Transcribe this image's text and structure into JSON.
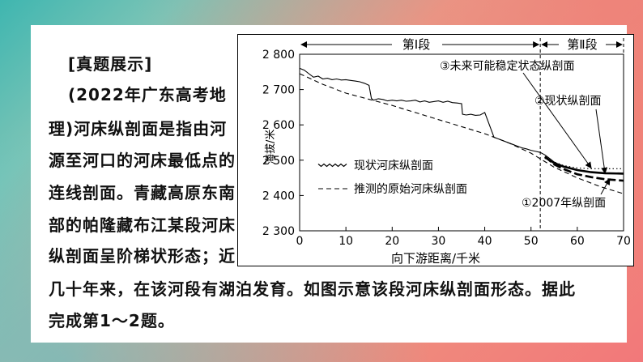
{
  "passage": {
    "lines": [
      "[真题展示]",
      "(2022年广东高考地",
      "理)河床纵剖面是指由河",
      "源至河口的河床最低点的",
      "连线剖面。青藏高原东南",
      "部的帕隆藏布江某段河床",
      "纵剖面呈阶梯状形态；近",
      "几十年来，在该河段有湖泊发育。如图示意该段河床纵剖面形态。据此",
      "完成第1～2题。"
    ]
  },
  "chart_data": {
    "type": "line",
    "title": "",
    "xlabel": "向下游距离/千米",
    "ylabel": "海拔/米",
    "xlim": [
      0,
      70
    ],
    "ylim": [
      2300,
      2800
    ],
    "x_ticks": [
      0,
      10,
      20,
      30,
      40,
      50,
      60,
      70
    ],
    "x_tick_labels": [
      "0",
      "10",
      "20",
      "30",
      "40",
      "50",
      "60",
      "70"
    ],
    "y_ticks": [
      2300,
      2400,
      2500,
      2600,
      2700,
      2800
    ],
    "y_tick_labels": [
      "2 300",
      "2 400",
      "2 500",
      "2 600",
      "2 700",
      "2 800"
    ],
    "grid": false,
    "sections": {
      "boundary_x": 52,
      "end_x": 70,
      "section1_label": "第Ⅰ段",
      "section2_label": "第Ⅱ段"
    },
    "legend": [
      {
        "name": "现状河床纵剖面",
        "style": "wavy-solid"
      },
      {
        "name": "推测的原始河床纵剖面",
        "style": "dashed"
      }
    ],
    "series": [
      {
        "name": "现状河床纵剖面",
        "style": "solid-thin",
        "x": [
          0,
          1,
          2,
          3,
          4,
          5,
          6,
          7,
          8,
          9,
          10,
          11,
          12,
          13,
          14,
          15,
          15.5,
          16,
          17,
          18,
          19,
          20,
          21,
          22,
          23,
          24,
          25,
          26,
          27,
          28,
          29,
          30,
          31,
          32,
          33,
          34,
          35,
          35.2,
          36,
          37,
          38,
          39,
          40,
          41,
          42,
          43,
          44,
          45,
          46,
          47,
          48,
          49,
          50,
          51,
          52,
          53,
          54,
          55,
          56,
          57
        ],
        "y": [
          2760,
          2755,
          2745,
          2735,
          2738,
          2730,
          2732,
          2728,
          2730,
          2727,
          2728,
          2726,
          2724,
          2722,
          2718,
          2712,
          2675,
          2670,
          2674,
          2672,
          2668,
          2670,
          2668,
          2670,
          2667,
          2668,
          2670,
          2665,
          2668,
          2664,
          2666,
          2668,
          2664,
          2667,
          2663,
          2662,
          2660,
          2630,
          2628,
          2630,
          2627,
          2628,
          2635,
          2600,
          2565,
          2560,
          2555,
          2550,
          2545,
          2540,
          2535,
          2532,
          2528,
          2525,
          2522,
          2515,
          2505,
          2495,
          2488,
          2482
        ]
      },
      {
        "name": "推测的原始河床纵剖面",
        "style": "dashed-thin",
        "x": [
          0,
          5,
          10,
          20,
          30,
          40,
          45,
          50,
          55,
          60,
          65,
          70
        ],
        "y": [
          2745,
          2715,
          2690,
          2655,
          2615,
          2575,
          2550,
          2520,
          2480,
          2450,
          2425,
          2405
        ]
      },
      {
        "name": "①2007年纵剖面",
        "style": "dashed-thick",
        "x": [
          53,
          55,
          57,
          60,
          63,
          66,
          70
        ],
        "y": [
          2510,
          2488,
          2475,
          2460,
          2452,
          2446,
          2442
        ]
      },
      {
        "name": "②现状纵剖面",
        "style": "solid-thick",
        "x": [
          53,
          55,
          57,
          60,
          63,
          66,
          70
        ],
        "y": [
          2508,
          2492,
          2482,
          2472,
          2466,
          2463,
          2462
        ]
      },
      {
        "name": "③未来可能稳定状态纵剖面",
        "style": "dotted-thin",
        "x": [
          53,
          55,
          57,
          60,
          63,
          66,
          70
        ],
        "y": [
          2505,
          2495,
          2485,
          2478,
          2476,
          2476,
          2476
        ]
      }
    ],
    "annotations": [
      {
        "label": "③未来可能稳定状态纵剖面",
        "arrow_to_x": 63,
        "arrow_to_y": 2478
      },
      {
        "label": "②现状纵剖面",
        "arrow_to_x": 66,
        "arrow_to_y": 2463
      },
      {
        "label": "①2007年纵剖面",
        "arrow_to_x": 67,
        "arrow_to_y": 2447
      }
    ]
  }
}
